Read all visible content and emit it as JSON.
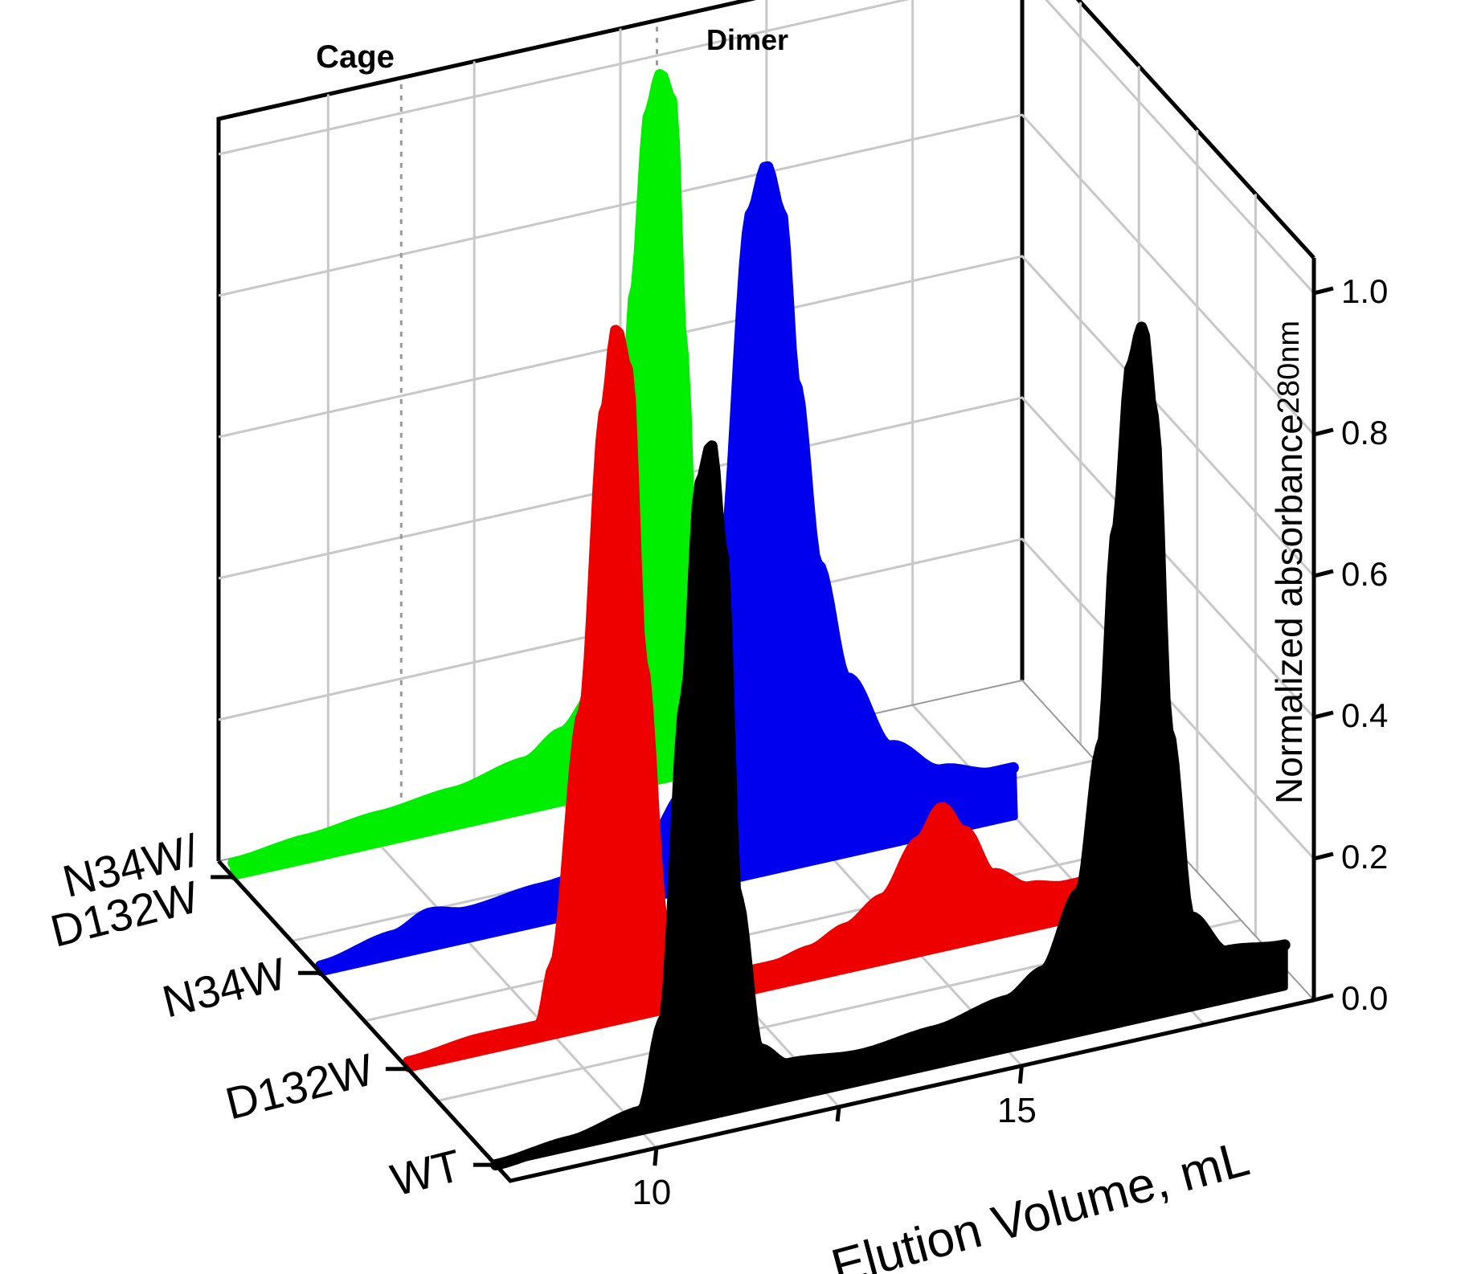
{
  "chart_data": {
    "type": "line",
    "style": "3d-waterfall-filled",
    "title": "",
    "xlabel": "Elution Volume, mL",
    "ylabel": "",
    "zlabel": "Normalized absorbance",
    "zlabel_subscript": "280nm",
    "x_ticks": [
      "10",
      "15"
    ],
    "z_ticks": [
      "0.0",
      "0.2",
      "0.4",
      "0.6",
      "0.8",
      "1.0"
    ],
    "xlim": [
      8,
      19
    ],
    "zlim": [
      0,
      1.0
    ],
    "annotations": [
      {
        "label": "Cage",
        "x": 10.5
      },
      {
        "label": "Dimer",
        "x": 14.0
      }
    ],
    "series": [
      {
        "name_lines": [
          "N34W/",
          "D132W"
        ],
        "color": "#00ee00",
        "x": [
          8,
          9,
          10,
          11,
          12,
          12.5,
          13,
          13.3,
          13.5,
          13.7,
          13.85,
          14,
          14.15,
          14.3,
          14.5,
          14.8,
          15.2
        ],
        "y": [
          0.02,
          0.03,
          0.04,
          0.05,
          0.07,
          0.1,
          0.15,
          0.35,
          0.7,
          0.95,
          1.0,
          0.96,
          0.6,
          0.25,
          0.12,
          0.07,
          0.05
        ]
      },
      {
        "name_lines": [
          "N34W"
        ],
        "color": "#0000ee",
        "x": [
          8,
          9,
          9.5,
          10,
          11,
          12,
          12.5,
          13,
          13.5,
          13.9,
          14.1,
          14.3,
          14.5,
          14.8,
          15.2,
          15.8,
          16.5,
          17.2,
          17.5
        ],
        "y": [
          0.01,
          0.03,
          0.05,
          0.04,
          0.05,
          0.06,
          0.08,
          0.14,
          0.45,
          0.94,
          1.0,
          0.93,
          0.68,
          0.42,
          0.25,
          0.14,
          0.09,
          0.07,
          0.07
        ]
      },
      {
        "name_lines": [
          "D132W"
        ],
        "color": "#ee0000",
        "x": [
          8,
          9,
          9.8,
          10.0,
          10.4,
          10.7,
          10.85,
          11.0,
          11.2,
          11.5,
          11.7,
          12,
          13,
          13.5,
          14,
          14.5,
          15,
          15.3,
          15.6,
          16,
          16.5,
          17,
          17.5
        ],
        "y": [
          0.01,
          0.02,
          0.02,
          0.1,
          0.45,
          0.87,
          0.98,
          0.92,
          0.5,
          0.12,
          0.04,
          0.03,
          0.03,
          0.04,
          0.06,
          0.09,
          0.16,
          0.2,
          0.16,
          0.09,
          0.06,
          0.05,
          0.05
        ]
      },
      {
        "name_lines": [
          "WT"
        ],
        "color": "#000000",
        "x": [
          8,
          9,
          10,
          10.3,
          10.6,
          10.8,
          10.95,
          11.1,
          11.3,
          11.6,
          12,
          13,
          14,
          15,
          15.5,
          16,
          16.3,
          16.5,
          16.7,
          16.85,
          17.0,
          17.2,
          17.5,
          18,
          18.8
        ],
        "y": [
          0.0,
          0.01,
          0.03,
          0.15,
          0.6,
          0.9,
          0.95,
          0.8,
          0.3,
          0.08,
          0.05,
          0.04,
          0.05,
          0.07,
          0.1,
          0.2,
          0.4,
          0.7,
          0.93,
          0.98,
          0.85,
          0.4,
          0.13,
          0.07,
          0.06
        ]
      }
    ]
  }
}
